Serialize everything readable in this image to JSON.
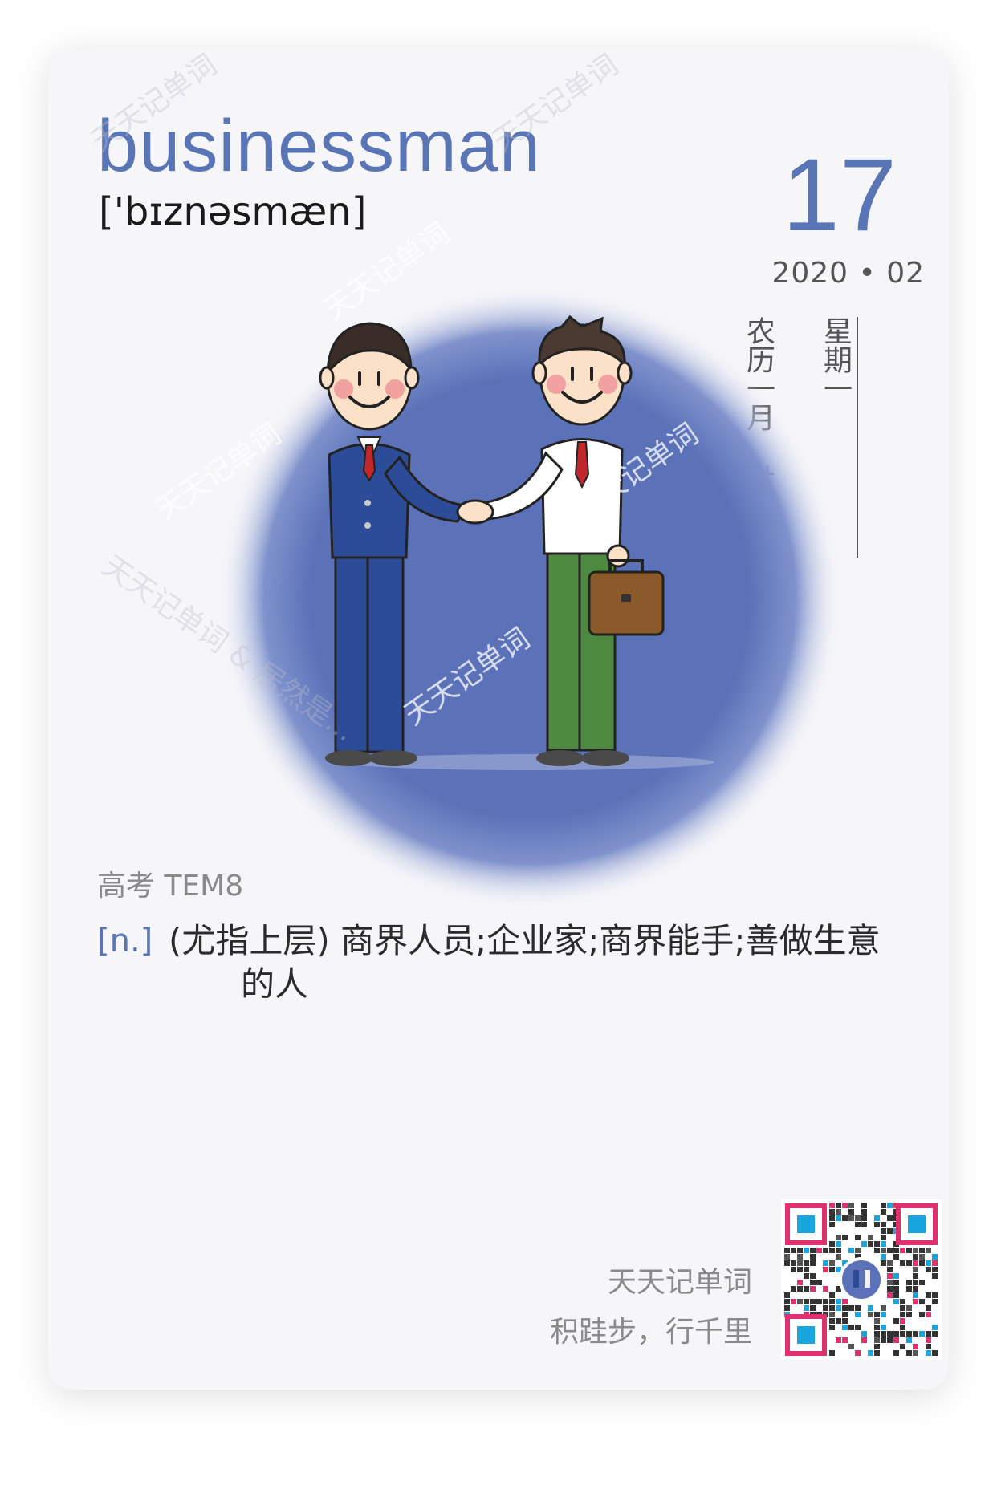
{
  "card": {
    "word": "businessman",
    "phonetic": "['bɪznəsmæn]",
    "date": {
      "day": "17",
      "year_month": "2020 • 02",
      "lunar": "农历一月 廿四",
      "weekday": "星期一"
    },
    "tags": "高考 TEM8",
    "definition": {
      "pos": "[n.]",
      "text": "(尤指上层) 商界人员;企业家;商界能手;善做生意的人"
    },
    "brand": {
      "name": "天天记单词",
      "slogan": "积跬步，行千里"
    },
    "watermarks": {
      "main": "天天记单词",
      "long": "天天记单词 & 居然是..."
    }
  },
  "theme": {
    "accent": "#5a75b6",
    "circle_blue": "#5b72b8",
    "card_bg": "#f6f6f9",
    "qr_pink": "#e0306f",
    "qr_cyan": "#19a6e0"
  },
  "icons": [
    "handshake-illustration",
    "qr-code-icon"
  ]
}
